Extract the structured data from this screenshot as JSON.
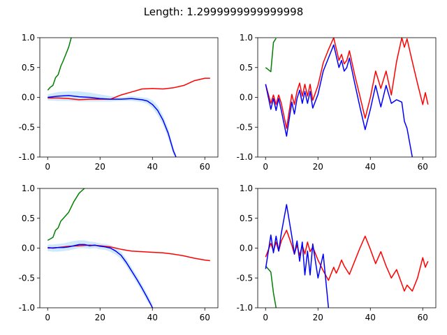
{
  "figure": {
    "suptitle": "Length: 1.2999999999999998"
  },
  "chart_data": [
    {
      "type": "line",
      "panel": "top-left",
      "xlim": [
        -3,
        65
      ],
      "ylim": [
        -1,
        1
      ],
      "xticks": [
        0,
        20,
        40,
        60
      ],
      "yticks": [
        -1.0,
        -0.5,
        0.0,
        0.5,
        1.0
      ],
      "series": [
        {
          "color": "#008000",
          "x": [
            0,
            1,
            2,
            3,
            4,
            5,
            6,
            7,
            8,
            9
          ],
          "y": [
            0.12,
            0.17,
            0.2,
            0.33,
            0.38,
            0.52,
            0.62,
            0.73,
            0.84,
            1.0
          ]
        },
        {
          "color": "#ff0000",
          "x": [
            0,
            4,
            8,
            12,
            16,
            20,
            24,
            28,
            32,
            36,
            40,
            44,
            48,
            52,
            56,
            60,
            62
          ],
          "y": [
            -0.01,
            -0.01,
            -0.02,
            -0.04,
            -0.03,
            -0.03,
            -0.03,
            0.04,
            0.09,
            0.14,
            0.15,
            0.14,
            0.16,
            0.2,
            0.28,
            0.32,
            0.32
          ]
        },
        {
          "color": "#0000ff",
          "x": [
            0,
            4,
            8,
            12,
            16,
            20,
            24,
            28,
            32,
            36,
            38,
            40,
            42,
            44,
            46,
            48,
            49
          ],
          "y": [
            0.0,
            0.02,
            0.03,
            0.01,
            0.0,
            -0.02,
            -0.03,
            -0.03,
            -0.02,
            -0.04,
            -0.06,
            -0.12,
            -0.22,
            -0.38,
            -0.6,
            -0.9,
            -1.0
          ]
        }
      ],
      "band": {
        "color": "#cde9fb",
        "x": [
          0,
          4,
          8,
          12,
          16,
          20,
          24,
          28,
          32,
          36,
          38,
          40,
          42,
          44,
          46,
          48,
          49
        ],
        "lower": [
          -0.05,
          -0.06,
          -0.06,
          -0.07,
          -0.07,
          -0.07,
          -0.07,
          -0.06,
          -0.06,
          -0.08,
          -0.11,
          -0.18,
          -0.3,
          -0.46,
          -0.68,
          -0.96,
          -1.0
        ],
        "upper": [
          0.05,
          0.09,
          0.1,
          0.1,
          0.08,
          0.05,
          0.02,
          0.0,
          0.02,
          0.0,
          -0.01,
          -0.05,
          -0.14,
          -0.3,
          -0.52,
          -0.84,
          -0.95
        ]
      }
    },
    {
      "type": "line",
      "panel": "top-right",
      "xlim": [
        -3,
        65
      ],
      "ylim": [
        -1,
        1
      ],
      "xticks": [
        0,
        20,
        40,
        60
      ],
      "yticks": [
        -1.0,
        -0.5,
        0.0,
        0.5,
        1.0
      ],
      "series": [
        {
          "color": "#008000",
          "x": [
            0,
            2,
            3,
            4
          ],
          "y": [
            0.5,
            0.43,
            0.92,
            0.99
          ]
        },
        {
          "color": "#ff0000",
          "x": [
            0,
            2,
            3,
            4,
            5,
            6,
            8,
            10,
            11,
            12,
            13,
            14,
            15,
            16,
            17,
            18,
            20,
            22,
            24,
            26,
            28,
            29,
            30,
            31,
            32,
            34,
            36,
            38,
            40,
            42,
            44,
            46,
            48,
            50,
            52,
            53,
            54,
            56,
            58,
            60,
            61,
            62
          ],
          "y": [
            0.22,
            -0.1,
            0.04,
            -0.12,
            0.04,
            -0.1,
            -0.52,
            0.05,
            -0.12,
            0.1,
            0.24,
            0.02,
            0.22,
            0.02,
            0.22,
            -0.05,
            0.2,
            0.58,
            0.8,
            1.0,
            0.62,
            0.72,
            0.56,
            0.62,
            0.78,
            0.38,
            0.02,
            -0.35,
            0.0,
            0.44,
            0.15,
            0.44,
            0.04,
            0.6,
            1.0,
            0.84,
            0.98,
            0.6,
            0.23,
            -0.12,
            0.08,
            -0.12
          ]
        },
        {
          "color": "#0000ff",
          "x": [
            0,
            2,
            3,
            4,
            5,
            6,
            8,
            10,
            11,
            12,
            13,
            14,
            15,
            16,
            17,
            18,
            20,
            22,
            24,
            26,
            28,
            29,
            30,
            31,
            32,
            34,
            36,
            38,
            40,
            42,
            44,
            46,
            48,
            50,
            52,
            53,
            54,
            56
          ],
          "y": [
            0.22,
            -0.2,
            -0.02,
            -0.22,
            -0.02,
            -0.22,
            -0.65,
            -0.08,
            -0.28,
            -0.02,
            0.12,
            -0.1,
            0.1,
            -0.1,
            0.1,
            -0.18,
            0.05,
            0.44,
            0.66,
            0.88,
            0.5,
            0.62,
            0.44,
            0.5,
            0.66,
            0.24,
            -0.16,
            -0.54,
            -0.2,
            0.2,
            -0.16,
            0.2,
            -0.1,
            -0.04,
            -0.08,
            -0.4,
            -0.52,
            -1.0
          ]
        }
      ]
    },
    {
      "type": "line",
      "panel": "bottom-left",
      "xlim": [
        -3,
        65
      ],
      "ylim": [
        -1,
        1
      ],
      "xticks": [
        0,
        20,
        40,
        60
      ],
      "yticks": [
        -1.0,
        -0.5,
        0.0,
        0.5,
        1.0
      ],
      "series": [
        {
          "color": "#008000",
          "x": [
            0,
            2,
            3,
            4,
            5,
            6,
            8,
            10,
            12,
            14
          ],
          "y": [
            0.13,
            0.18,
            0.3,
            0.34,
            0.45,
            0.5,
            0.6,
            0.78,
            0.92,
            1.0
          ]
        },
        {
          "color": "#ff0000",
          "x": [
            0,
            4,
            8,
            12,
            16,
            20,
            24,
            28,
            32,
            36,
            40,
            44,
            48,
            52,
            56,
            60,
            62
          ],
          "y": [
            0.0,
            0.01,
            0.03,
            0.04,
            0.05,
            0.04,
            0.02,
            -0.02,
            -0.05,
            -0.06,
            -0.07,
            -0.08,
            -0.1,
            -0.13,
            -0.17,
            -0.2,
            -0.21
          ]
        },
        {
          "color": "#0000ff",
          "x": [
            0,
            2,
            4,
            6,
            8,
            10,
            12,
            14,
            16,
            18,
            20,
            22,
            24,
            26,
            28,
            30,
            32,
            34,
            36,
            38,
            40
          ],
          "y": [
            0.01,
            0.0,
            0.01,
            0.01,
            0.02,
            0.04,
            0.06,
            0.06,
            0.04,
            0.05,
            0.03,
            0.02,
            0.0,
            -0.05,
            -0.12,
            -0.24,
            -0.38,
            -0.52,
            -0.67,
            -0.83,
            -1.0
          ]
        }
      ],
      "band": {
        "color": "#cde9fb",
        "x": [
          0,
          2,
          4,
          6,
          8,
          10,
          12,
          14,
          16,
          18,
          20,
          22,
          24,
          26,
          28,
          30,
          32,
          34,
          36,
          38,
          40
        ],
        "lower": [
          -0.05,
          -0.06,
          -0.06,
          -0.05,
          -0.04,
          -0.02,
          0.0,
          0.0,
          -0.01,
          0.0,
          -0.02,
          -0.03,
          -0.06,
          -0.11,
          -0.18,
          -0.3,
          -0.44,
          -0.58,
          -0.73,
          -0.89,
          -1.0
        ],
        "upper": [
          0.06,
          0.06,
          0.07,
          0.08,
          0.1,
          0.12,
          0.13,
          0.13,
          0.11,
          0.1,
          0.08,
          0.07,
          0.05,
          0.01,
          -0.06,
          -0.18,
          -0.32,
          -0.46,
          -0.61,
          -0.77,
          -0.94
        ]
      }
    },
    {
      "type": "line",
      "panel": "bottom-right",
      "xlim": [
        -3,
        65
      ],
      "ylim": [
        -1,
        1
      ],
      "xticks": [
        0,
        20,
        40,
        60
      ],
      "yticks": [
        -1.0,
        -0.5,
        0.0,
        0.5,
        1.0
      ],
      "series": [
        {
          "color": "#008000",
          "x": [
            0,
            1,
            2,
            3,
            4
          ],
          "y": [
            -0.3,
            -0.35,
            -0.4,
            -0.75,
            -1.0
          ]
        },
        {
          "color": "#ff0000",
          "x": [
            0,
            2,
            3,
            4,
            5,
            6,
            8,
            10,
            11,
            12,
            13,
            14,
            15,
            16,
            17,
            18,
            20,
            22,
            24,
            26,
            27,
            28,
            29,
            30,
            32,
            34,
            36,
            38,
            40,
            42,
            44,
            46,
            48,
            50,
            52,
            53,
            54,
            56,
            58,
            60,
            61,
            62
          ],
          "y": [
            -0.15,
            0.08,
            -0.05,
            0.1,
            -0.05,
            0.12,
            0.3,
            0.05,
            -0.1,
            0.05,
            -0.12,
            0.05,
            -0.1,
            0.1,
            -0.06,
            0.02,
            -0.2,
            -0.38,
            -0.54,
            -0.32,
            -0.42,
            -0.32,
            -0.2,
            -0.3,
            -0.44,
            -0.22,
            0.0,
            0.2,
            -0.02,
            -0.26,
            -0.06,
            -0.3,
            -0.5,
            -0.36,
            -0.6,
            -0.72,
            -0.62,
            -0.72,
            -0.5,
            -0.16,
            -0.32,
            -0.22
          ]
        },
        {
          "color": "#0000ff",
          "x": [
            0,
            2,
            3,
            4,
            5,
            6,
            8,
            10,
            11,
            12,
            13,
            14,
            15,
            16,
            17,
            18,
            20,
            22,
            24
          ],
          "y": [
            -0.35,
            0.22,
            -0.08,
            0.2,
            -0.05,
            0.25,
            0.73,
            0.2,
            -0.1,
            0.12,
            -0.22,
            0.1,
            -0.45,
            -0.05,
            -0.45,
            0.07,
            -0.5,
            -0.1,
            -1.0
          ]
        }
      ]
    }
  ]
}
